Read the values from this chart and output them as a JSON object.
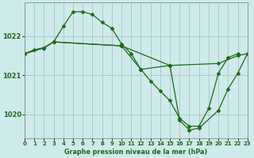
{
  "title": "Graphe pression niveau de la mer (hPa)",
  "bg_color": "#ceeaea",
  "grid_color": "#aacccc",
  "line_color": "#1a6b1a",
  "xlim": [
    0,
    23
  ],
  "ylim": [
    1019.4,
    1022.85
  ],
  "yticks": [
    1020,
    1021,
    1022
  ],
  "xticks": [
    0,
    1,
    2,
    3,
    4,
    5,
    6,
    7,
    8,
    9,
    10,
    11,
    12,
    13,
    14,
    15,
    16,
    17,
    18,
    19,
    20,
    21,
    22,
    23
  ],
  "series1_x": [
    0,
    1,
    2,
    3,
    4,
    5,
    6,
    7,
    8,
    9,
    10,
    11,
    12,
    13,
    14,
    15,
    16,
    17,
    18,
    19,
    20,
    21,
    22
  ],
  "series1_y": [
    1021.55,
    1021.65,
    1021.7,
    1021.85,
    1022.25,
    1022.62,
    1022.62,
    1022.55,
    1022.35,
    1022.2,
    1021.8,
    1021.55,
    1021.15,
    1020.85,
    1020.6,
    1020.35,
    1019.9,
    1019.7,
    1019.7,
    1020.15,
    1021.05,
    1021.45,
    1021.55
  ],
  "series2_x": [
    0,
    2,
    3,
    10,
    15,
    20,
    22,
    23
  ],
  "series2_y": [
    1021.55,
    1021.7,
    1021.85,
    1021.75,
    1021.25,
    1021.3,
    1021.5,
    1021.55
  ],
  "series3_x": [
    0,
    2,
    3,
    10,
    12,
    15,
    16,
    17,
    18,
    20,
    21,
    22,
    23
  ],
  "series3_y": [
    1021.55,
    1021.7,
    1021.85,
    1021.75,
    1021.15,
    1021.25,
    1019.85,
    1019.6,
    1019.65,
    1020.1,
    1020.65,
    1021.05,
    1021.55
  ],
  "markersize": 2.5
}
